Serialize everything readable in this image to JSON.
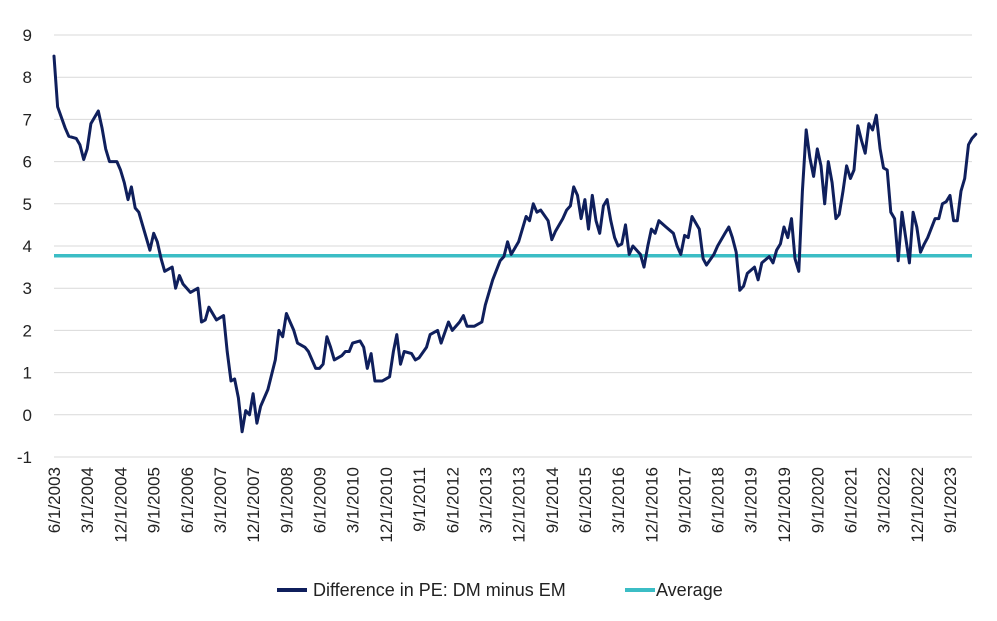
{
  "chart_data": {
    "type": "line",
    "title": "",
    "xlabel": "",
    "ylabel": "",
    "ylim": [
      -1,
      9
    ],
    "yticks": [
      -1,
      0,
      1,
      2,
      3,
      4,
      5,
      6,
      7,
      8,
      9
    ],
    "xticks": [
      "6/1/2003",
      "3/1/2004",
      "12/1/2004",
      "9/1/2005",
      "6/1/2006",
      "3/1/2007",
      "12/1/2007",
      "9/1/2008",
      "6/1/2009",
      "3/1/2010",
      "12/1/2010",
      "9/1/2011",
      "6/1/2012",
      "3/1/2013",
      "12/1/2013",
      "9/1/2014",
      "6/1/2015",
      "3/1/2016",
      "12/1/2016",
      "9/1/2017",
      "6/1/2018",
      "3/1/2019",
      "12/1/2019",
      "9/1/2020",
      "6/1/2021",
      "3/1/2022",
      "12/1/2022",
      "9/1/2023"
    ],
    "grid": true,
    "legend_position": "bottom",
    "x_start": "6/1/2003",
    "x_end": "3/1/2024",
    "series": [
      {
        "name": "Difference in PE: DM minus EM",
        "color": "#0f1f5c",
        "points": [
          [
            "6/1/2003",
            8.5
          ],
          [
            "7/1/2003",
            7.3
          ],
          [
            "9/1/2003",
            6.8
          ],
          [
            "10/1/2003",
            6.6
          ],
          [
            "12/1/2003",
            6.55
          ],
          [
            "1/1/2004",
            6.4
          ],
          [
            "2/1/2004",
            6.05
          ],
          [
            "3/1/2004",
            6.3
          ],
          [
            "4/1/2004",
            6.9
          ],
          [
            "6/1/2004",
            7.2
          ],
          [
            "7/1/2004",
            6.8
          ],
          [
            "8/1/2004",
            6.3
          ],
          [
            "9/1/2004",
            6.0
          ],
          [
            "11/1/2004",
            6.0
          ],
          [
            "12/1/2004",
            5.8
          ],
          [
            "1/1/2005",
            5.5
          ],
          [
            "2/1/2005",
            5.1
          ],
          [
            "3/1/2005",
            5.4
          ],
          [
            "4/1/2005",
            4.9
          ],
          [
            "5/1/2005",
            4.8
          ],
          [
            "6/1/2005",
            4.5
          ],
          [
            "7/1/2005",
            4.2
          ],
          [
            "8/1/2005",
            3.9
          ],
          [
            "9/1/2005",
            4.3
          ],
          [
            "10/1/2005",
            4.1
          ],
          [
            "11/1/2005",
            3.7
          ],
          [
            "12/1/2005",
            3.4
          ],
          [
            "2/1/2006",
            3.5
          ],
          [
            "3/1/2006",
            3.0
          ],
          [
            "4/1/2006",
            3.3
          ],
          [
            "5/1/2006",
            3.1
          ],
          [
            "7/1/2006",
            2.9
          ],
          [
            "9/1/2006",
            3.0
          ],
          [
            "10/1/2006",
            2.2
          ],
          [
            "11/1/2006",
            2.25
          ],
          [
            "12/1/2006",
            2.55
          ],
          [
            "2/1/2007",
            2.25
          ],
          [
            "4/1/2007",
            2.35
          ],
          [
            "5/1/2007",
            1.5
          ],
          [
            "6/1/2007",
            0.8
          ],
          [
            "7/1/2007",
            0.85
          ],
          [
            "8/1/2007",
            0.4
          ],
          [
            "9/1/2007",
            -0.4
          ],
          [
            "10/1/2007",
            0.1
          ],
          [
            "11/1/2007",
            0.0
          ],
          [
            "12/1/2007",
            0.5
          ],
          [
            "1/1/2008",
            -0.2
          ],
          [
            "2/1/2008",
            0.2
          ],
          [
            "4/1/2008",
            0.6
          ],
          [
            "6/1/2008",
            1.3
          ],
          [
            "7/1/2008",
            2.0
          ],
          [
            "8/1/2008",
            1.85
          ],
          [
            "9/1/2008",
            2.4
          ],
          [
            "10/1/2008",
            2.2
          ],
          [
            "11/1/2008",
            2.0
          ],
          [
            "12/1/2008",
            1.7
          ],
          [
            "2/1/2009",
            1.6
          ],
          [
            "3/1/2009",
            1.5
          ],
          [
            "5/1/2009",
            1.1
          ],
          [
            "6/1/2009",
            1.1
          ],
          [
            "7/1/2009",
            1.2
          ],
          [
            "8/1/2009",
            1.85
          ],
          [
            "9/1/2009",
            1.6
          ],
          [
            "10/1/2009",
            1.3
          ],
          [
            "12/1/2009",
            1.4
          ],
          [
            "1/1/2010",
            1.5
          ],
          [
            "2/1/2010",
            1.5
          ],
          [
            "3/1/2010",
            1.7
          ],
          [
            "5/1/2010",
            1.75
          ],
          [
            "6/1/2010",
            1.6
          ],
          [
            "7/1/2010",
            1.1
          ],
          [
            "8/1/2010",
            1.45
          ],
          [
            "9/1/2010",
            0.8
          ],
          [
            "11/1/2010",
            0.8
          ],
          [
            "12/1/2010",
            0.85
          ],
          [
            "1/1/2011",
            0.9
          ],
          [
            "2/1/2011",
            1.5
          ],
          [
            "3/1/2011",
            1.9
          ],
          [
            "4/1/2011",
            1.2
          ],
          [
            "5/1/2011",
            1.5
          ],
          [
            "7/1/2011",
            1.45
          ],
          [
            "8/1/2011",
            1.3
          ],
          [
            "9/1/2011",
            1.35
          ],
          [
            "11/1/2011",
            1.6
          ],
          [
            "12/1/2011",
            1.9
          ],
          [
            "2/1/2012",
            2.0
          ],
          [
            "3/1/2012",
            1.7
          ],
          [
            "5/1/2012",
            2.2
          ],
          [
            "6/1/2012",
            2.0
          ],
          [
            "8/1/2012",
            2.2
          ],
          [
            "9/1/2012",
            2.35
          ],
          [
            "10/1/2012",
            2.1
          ],
          [
            "12/1/2012",
            2.1
          ],
          [
            "2/1/2013",
            2.2
          ],
          [
            "3/1/2013",
            2.6
          ],
          [
            "5/1/2013",
            3.2
          ],
          [
            "7/1/2013",
            3.65
          ],
          [
            "8/1/2013",
            3.75
          ],
          [
            "9/1/2013",
            4.1
          ],
          [
            "10/1/2013",
            3.8
          ],
          [
            "12/1/2013",
            4.1
          ],
          [
            "2/1/2014",
            4.7
          ],
          [
            "3/1/2014",
            4.6
          ],
          [
            "4/1/2014",
            5.0
          ],
          [
            "5/1/2014",
            4.8
          ],
          [
            "6/1/2014",
            4.85
          ],
          [
            "8/1/2014",
            4.6
          ],
          [
            "9/1/2014",
            4.15
          ],
          [
            "10/1/2014",
            4.35
          ],
          [
            "12/1/2014",
            4.65
          ],
          [
            "1/1/2015",
            4.85
          ],
          [
            "2/1/2015",
            4.95
          ],
          [
            "3/1/2015",
            5.4
          ],
          [
            "4/1/2015",
            5.2
          ],
          [
            "5/1/2015",
            4.65
          ],
          [
            "6/1/2015",
            5.1
          ],
          [
            "7/1/2015",
            4.4
          ],
          [
            "8/1/2015",
            5.2
          ],
          [
            "9/1/2015",
            4.6
          ],
          [
            "10/1/2015",
            4.3
          ],
          [
            "11/1/2015",
            4.95
          ],
          [
            "12/1/2015",
            5.1
          ],
          [
            "1/1/2016",
            4.6
          ],
          [
            "2/1/2016",
            4.2
          ],
          [
            "3/1/2016",
            4.0
          ],
          [
            "4/1/2016",
            4.05
          ],
          [
            "5/1/2016",
            4.5
          ],
          [
            "6/1/2016",
            3.8
          ],
          [
            "7/1/2016",
            4.0
          ],
          [
            "9/1/2016",
            3.8
          ],
          [
            "10/1/2016",
            3.5
          ],
          [
            "11/1/2016",
            4.0
          ],
          [
            "12/1/2016",
            4.4
          ],
          [
            "1/1/2017",
            4.3
          ],
          [
            "2/1/2017",
            4.6
          ],
          [
            "4/1/2017",
            4.45
          ],
          [
            "6/1/2017",
            4.3
          ],
          [
            "7/1/2017",
            4.0
          ],
          [
            "8/1/2017",
            3.8
          ],
          [
            "9/1/2017",
            4.25
          ],
          [
            "10/1/2017",
            4.2
          ],
          [
            "11/1/2017",
            4.7
          ],
          [
            "1/1/2018",
            4.4
          ],
          [
            "2/1/2018",
            3.7
          ],
          [
            "3/1/2018",
            3.55
          ],
          [
            "5/1/2018",
            3.8
          ],
          [
            "6/1/2018",
            4.0
          ],
          [
            "8/1/2018",
            4.3
          ],
          [
            "9/1/2018",
            4.45
          ],
          [
            "10/1/2018",
            4.2
          ],
          [
            "11/1/2018",
            3.85
          ],
          [
            "12/1/2018",
            2.95
          ],
          [
            "1/1/2019",
            3.05
          ],
          [
            "2/1/2019",
            3.35
          ],
          [
            "4/1/2019",
            3.5
          ],
          [
            "5/1/2019",
            3.2
          ],
          [
            "6/1/2019",
            3.6
          ],
          [
            "8/1/2019",
            3.75
          ],
          [
            "9/1/2019",
            3.6
          ],
          [
            "10/1/2019",
            3.9
          ],
          [
            "11/1/2019",
            4.05
          ],
          [
            "12/1/2019",
            4.45
          ],
          [
            "1/1/2020",
            4.2
          ],
          [
            "2/1/2020",
            4.65
          ],
          [
            "3/1/2020",
            3.7
          ],
          [
            "4/1/2020",
            3.4
          ],
          [
            "5/1/2020",
            5.3
          ],
          [
            "6/1/2020",
            6.75
          ],
          [
            "7/1/2020",
            6.1
          ],
          [
            "8/1/2020",
            5.65
          ],
          [
            "9/1/2020",
            6.3
          ],
          [
            "10/1/2020",
            5.9
          ],
          [
            "11/1/2020",
            5.0
          ],
          [
            "12/1/2020",
            6.0
          ],
          [
            "1/1/2021",
            5.5
          ],
          [
            "2/1/2021",
            4.65
          ],
          [
            "3/1/2021",
            4.75
          ],
          [
            "4/1/2021",
            5.3
          ],
          [
            "5/1/2021",
            5.9
          ],
          [
            "6/1/2021",
            5.6
          ],
          [
            "7/1/2021",
            5.8
          ],
          [
            "8/1/2021",
            6.85
          ],
          [
            "9/1/2021",
            6.5
          ],
          [
            "10/1/2021",
            6.2
          ],
          [
            "11/1/2021",
            6.9
          ],
          [
            "12/1/2021",
            6.75
          ],
          [
            "1/1/2022",
            7.1
          ],
          [
            "2/1/2022",
            6.3
          ],
          [
            "3/1/2022",
            5.85
          ],
          [
            "4/1/2022",
            5.8
          ],
          [
            "5/1/2022",
            4.8
          ],
          [
            "6/1/2022",
            4.65
          ],
          [
            "7/1/2022",
            3.65
          ],
          [
            "8/1/2022",
            4.8
          ],
          [
            "9/1/2022",
            4.2
          ],
          [
            "10/1/2022",
            3.6
          ],
          [
            "11/1/2022",
            4.8
          ],
          [
            "12/1/2022",
            4.45
          ],
          [
            "1/1/2023",
            3.85
          ],
          [
            "2/1/2023",
            4.05
          ],
          [
            "3/1/2023",
            4.2
          ],
          [
            "5/1/2023",
            4.65
          ],
          [
            "6/1/2023",
            4.65
          ],
          [
            "7/1/2023",
            5.0
          ],
          [
            "8/1/2023",
            5.05
          ],
          [
            "9/1/2023",
            5.2
          ],
          [
            "10/1/2023",
            4.6
          ],
          [
            "11/1/2023",
            4.6
          ],
          [
            "12/1/2023",
            5.3
          ],
          [
            "1/1/2024",
            5.6
          ],
          [
            "2/1/2024",
            6.4
          ],
          [
            "3/1/2024",
            6.55
          ],
          [
            "4/1/2024",
            6.65
          ]
        ]
      },
      {
        "name": "Average",
        "color": "#3bbdc5",
        "constant": 3.77
      }
    ]
  }
}
